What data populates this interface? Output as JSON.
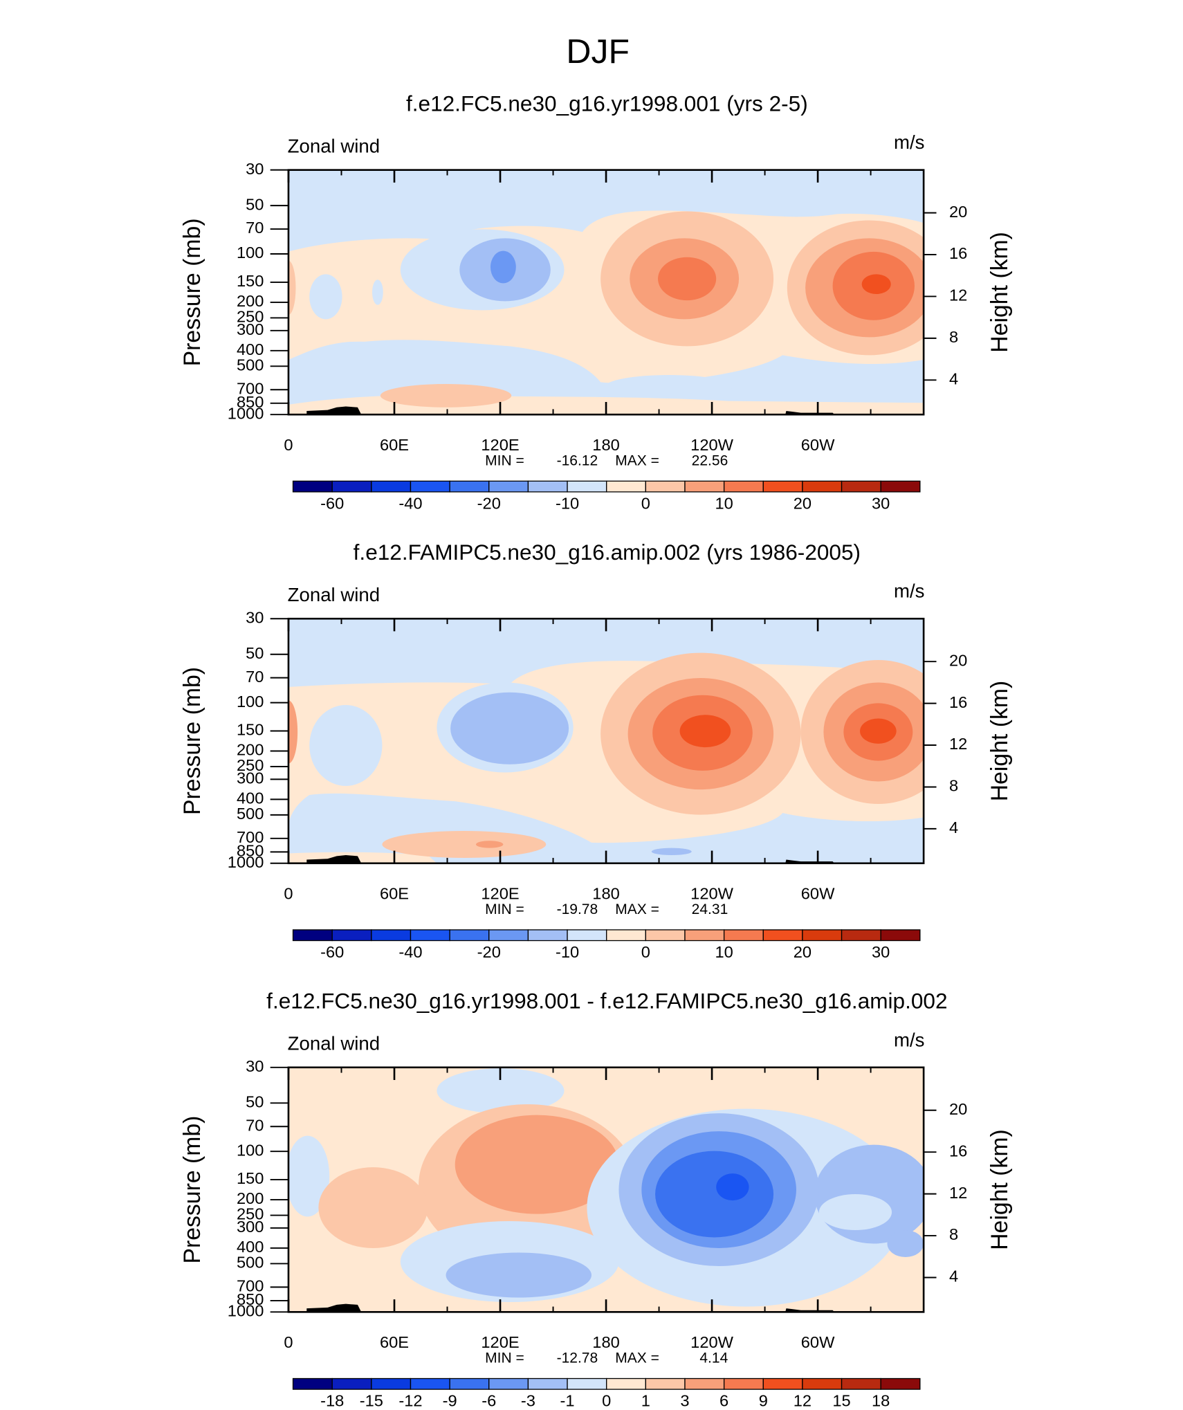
{
  "title": "DJF",
  "chart_data": [
    {
      "type": "contour",
      "title": "f.e12.FC5.ne30_g16.yr1998.001 (yrs 2-5)",
      "left_label": "Zonal wind",
      "units_label": "m/s",
      "ylabel": "Pressure (mb)",
      "y2label": "Height (km)",
      "ylog": true,
      "ylim": [
        1000,
        30
      ],
      "yticks": [
        30,
        50,
        70,
        100,
        150,
        200,
        250,
        300,
        400,
        500,
        700,
        850,
        1000
      ],
      "y2lim": [
        0.7,
        24.1
      ],
      "y2ticks": [
        4,
        8,
        12,
        16,
        20
      ],
      "xlim": [
        0,
        360
      ],
      "xticks": [
        0,
        {
          "value": 60,
          "label": "60E"
        },
        {
          "value": 120,
          "label": "120E"
        },
        180,
        {
          "value": 240,
          "label": "120W"
        },
        {
          "value": 300,
          "label": "60W"
        }
      ],
      "min_label": "MIN =",
      "min": -16.12,
      "max_label": "MAX =",
      "max": 22.56,
      "colorbar_colors": [
        "#000080",
        "#0a1fbf",
        "#0a3be0",
        "#1a55f2",
        "#3a72f0",
        "#6b98f3",
        "#a3bff5",
        "#d3e5fa",
        "#ffe8d2",
        "#fcc7a8",
        "#f8a07a",
        "#f57a50",
        "#f1501f",
        "#d93b0d",
        "#b82a10",
        "#8b0a0a"
      ],
      "colorbar_ticks": [
        -60,
        -40,
        -20,
        -10,
        0,
        10,
        20,
        30
      ]
    },
    {
      "type": "contour",
      "title": "f.e12.FAMIPC5.ne30_g16.amip.002 (yrs 1986-2005)",
      "left_label": "Zonal wind",
      "units_label": "m/s",
      "ylabel": "Pressure (mb)",
      "y2label": "Height (km)",
      "ylog": true,
      "ylim": [
        1000,
        30
      ],
      "yticks": [
        30,
        50,
        70,
        100,
        150,
        200,
        250,
        300,
        400,
        500,
        700,
        850,
        1000
      ],
      "y2lim": [
        0.7,
        24.1
      ],
      "y2ticks": [
        4,
        8,
        12,
        16,
        20
      ],
      "xlim": [
        0,
        360
      ],
      "xticks": [
        0,
        {
          "value": 60,
          "label": "60E"
        },
        {
          "value": 120,
          "label": "120E"
        },
        180,
        {
          "value": 240,
          "label": "120W"
        },
        {
          "value": 300,
          "label": "60W"
        }
      ],
      "min_label": "MIN =",
      "min": -19.78,
      "max_label": "MAX =",
      "max": 24.31,
      "colorbar_colors": [
        "#000080",
        "#0a1fbf",
        "#0a3be0",
        "#1a55f2",
        "#3a72f0",
        "#6b98f3",
        "#a3bff5",
        "#d3e5fa",
        "#ffe8d2",
        "#fcc7a8",
        "#f8a07a",
        "#f57a50",
        "#f1501f",
        "#d93b0d",
        "#b82a10",
        "#8b0a0a"
      ],
      "colorbar_ticks": [
        -60,
        -40,
        -20,
        -10,
        0,
        10,
        20,
        30
      ]
    },
    {
      "type": "contour",
      "title": "f.e12.FC5.ne30_g16.yr1998.001 - f.e12.FAMIPC5.ne30_g16.amip.002",
      "left_label": "Zonal wind",
      "units_label": "m/s",
      "ylabel": "Pressure (mb)",
      "y2label": "Height (km)",
      "ylog": true,
      "ylim": [
        1000,
        30
      ],
      "yticks": [
        30,
        50,
        70,
        100,
        150,
        200,
        250,
        300,
        400,
        500,
        700,
        850,
        1000
      ],
      "y2lim": [
        0.7,
        24.1
      ],
      "y2ticks": [
        4,
        8,
        12,
        16,
        20
      ],
      "xlim": [
        0,
        360
      ],
      "xticks": [
        0,
        {
          "value": 60,
          "label": "60E"
        },
        {
          "value": 120,
          "label": "120E"
        },
        180,
        {
          "value": 240,
          "label": "120W"
        },
        {
          "value": 300,
          "label": "60W"
        }
      ],
      "min_label": "MIN =",
      "min": -12.78,
      "max_label": "MAX =",
      "max": 4.14,
      "colorbar_colors": [
        "#000080",
        "#0a1fbf",
        "#0a3be0",
        "#1a55f2",
        "#3a72f0",
        "#6b98f3",
        "#a3bff5",
        "#d3e5fa",
        "#ffe8d2",
        "#fcc7a8",
        "#f8a07a",
        "#f57a50",
        "#f1501f",
        "#d93b0d",
        "#b82a10",
        "#8b0a0a"
      ],
      "colorbar_ticks": [
        -18,
        -15,
        -12,
        -9,
        -6,
        -3,
        -1,
        0,
        1,
        3,
        6,
        9,
        12,
        15,
        18
      ]
    }
  ]
}
